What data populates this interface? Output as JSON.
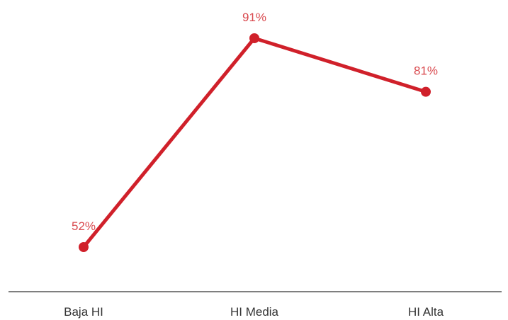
{
  "chart_data": {
    "type": "line",
    "categories": [
      "Baja HI",
      "HI Media",
      "HI Alta"
    ],
    "series": [
      {
        "values": [
          52,
          91,
          81
        ],
        "data_labels": [
          "52%",
          "91%",
          "81%"
        ]
      }
    ],
    "ylim": [
      40,
      95
    ],
    "grid": false,
    "legend": "none",
    "colors": {
      "line": "#d0202a",
      "label": "#d94a4f",
      "axis": "#333333"
    }
  }
}
